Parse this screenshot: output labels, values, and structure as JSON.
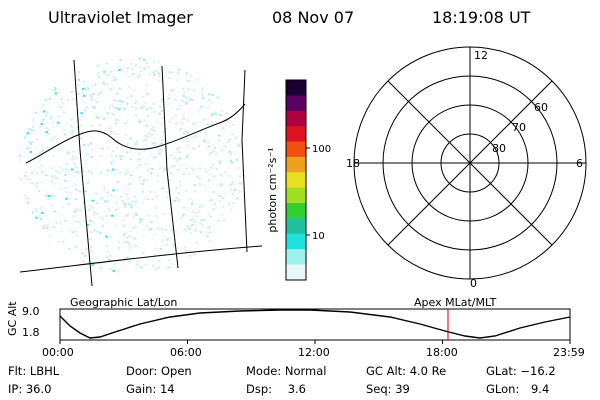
{
  "header": {
    "instrument": "Ultraviolet Imager",
    "date": "08 Nov 07",
    "time": "18:19:08 UT"
  },
  "colorbar": {
    "unit_label": "photon cm⁻²s⁻¹",
    "ticks": [
      "100",
      "10"
    ],
    "colors": [
      "#1a0030",
      "#5a0060",
      "#b00040",
      "#e01020",
      "#f05010",
      "#f0a020",
      "#e8e020",
      "#a0e020",
      "#30d030",
      "#20c0a0",
      "#20e0e0",
      "#a0f0f0",
      "#e8f8f8"
    ]
  },
  "polar_plot": {
    "clock_labels": {
      "top": "12",
      "left": "18",
      "right": "6",
      "bottom": "0"
    },
    "lat_labels": [
      "60",
      "70",
      "80"
    ]
  },
  "map_panel": {
    "left_caption": "Geographic Lat/Lon",
    "right_caption": "Apex MLat/MLT"
  },
  "altitude_strip": {
    "axis_label": "GC Alt",
    "y_ticks": [
      "9.0",
      "1.8"
    ],
    "time_ticks": [
      "00:00",
      "06:00",
      "12:00",
      "18:00",
      "23:59"
    ],
    "current_time_marker_color": "#cc0000"
  },
  "status": {
    "row1": [
      {
        "key": "Flt:",
        "value": "LBHL"
      },
      {
        "key": "Door:",
        "value": "Open"
      },
      {
        "key": "Mode:",
        "value": "Normal"
      },
      {
        "key": "GC Alt:",
        "value": "4.0 Re"
      },
      {
        "key": "GLat:",
        "value": "−16.2"
      }
    ],
    "row2": [
      {
        "key": "IP:",
        "value": "36.0"
      },
      {
        "key": "Gain:",
        "value": "14"
      },
      {
        "key": "Dsp:",
        "value": "3.6"
      },
      {
        "key": "Seq:",
        "value": "39"
      },
      {
        "key": "GLon:",
        "value": "9.4"
      }
    ]
  }
}
